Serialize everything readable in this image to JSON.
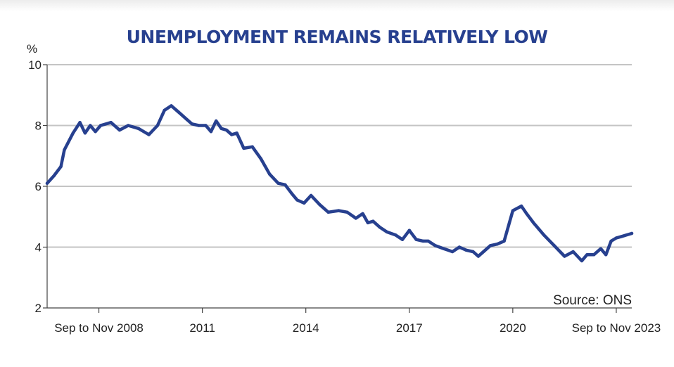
{
  "chart_data": {
    "type": "line",
    "title": "UNEMPLOYMENT REMAINS RELATIVELY LOW",
    "unit": "%",
    "source": "Source: ONS",
    "ylim": [
      2,
      10
    ],
    "yticks": [
      "2",
      "4",
      "6",
      "8",
      "10"
    ],
    "xlim": [
      2007.25,
      2024.2
    ],
    "xticks": [
      {
        "label": "Sep to Nov 2008",
        "x": 2008.75
      },
      {
        "label": "2011",
        "x": 2011.75
      },
      {
        "label": "2014",
        "x": 2014.75
      },
      {
        "label": "2017",
        "x": 2017.75
      },
      {
        "label": "2020",
        "x": 2020.75
      },
      {
        "label": "Sep to Nov 2023",
        "x": 2023.75
      }
    ],
    "grid": true,
    "line_color": "#27408f",
    "series": [
      {
        "x": [
          2007.25,
          2007.45,
          2007.65,
          2007.75,
          2008.0,
          2008.2,
          2008.35,
          2008.5,
          2008.65,
          2008.8,
          2009.1,
          2009.35,
          2009.6,
          2009.9,
          2010.2,
          2010.45,
          2010.65,
          2010.85,
          2011.05,
          2011.3,
          2011.45,
          2011.65,
          2011.85,
          2012.0,
          2012.15,
          2012.3,
          2012.45,
          2012.6,
          2012.75,
          2012.95,
          2013.2,
          2013.45,
          2013.7,
          2013.95,
          2014.15,
          2014.35,
          2014.5,
          2014.7,
          2014.9,
          2015.15,
          2015.4,
          2015.7,
          2015.95,
          2016.2,
          2016.4,
          2016.55,
          2016.7,
          2016.9,
          2017.1,
          2017.35,
          2017.55,
          2017.75,
          2017.95,
          2018.15,
          2018.3,
          2018.5,
          2018.75,
          2019.0,
          2019.2,
          2019.4,
          2019.6,
          2019.75,
          2019.9,
          2020.1,
          2020.3,
          2020.5,
          2020.75,
          2021.0,
          2021.15,
          2021.35,
          2021.65,
          2021.95,
          2022.25,
          2022.5,
          2022.75,
          2022.9,
          2023.1,
          2023.3,
          2023.45,
          2023.6,
          2023.75,
          2023.9,
          2024.2
        ],
        "y": [
          6.1,
          6.35,
          6.65,
          7.2,
          7.75,
          8.1,
          7.75,
          8.0,
          7.8,
          8.0,
          8.1,
          7.85,
          8.0,
          7.9,
          7.7,
          8.0,
          8.5,
          8.65,
          8.45,
          8.2,
          8.05,
          8.0,
          8.0,
          7.8,
          8.15,
          7.9,
          7.85,
          7.7,
          7.75,
          7.25,
          7.3,
          6.9,
          6.4,
          6.1,
          6.05,
          5.75,
          5.55,
          5.45,
          5.7,
          5.4,
          5.15,
          5.2,
          5.15,
          4.95,
          5.1,
          4.8,
          4.85,
          4.65,
          4.5,
          4.4,
          4.25,
          4.55,
          4.25,
          4.2,
          4.2,
          4.05,
          3.95,
          3.85,
          4.0,
          3.9,
          3.85,
          3.7,
          3.85,
          4.05,
          4.1,
          4.2,
          5.2,
          5.35,
          5.1,
          4.8,
          4.4,
          4.05,
          3.7,
          3.85,
          3.55,
          3.75,
          3.75,
          3.95,
          3.75,
          4.2,
          4.3,
          4.35,
          4.45
        ]
      }
    ]
  }
}
